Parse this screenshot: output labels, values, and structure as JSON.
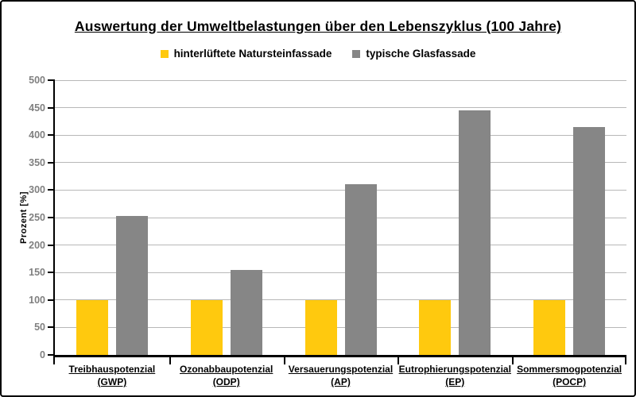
{
  "chart_data": {
    "type": "bar",
    "title": "Auswertung der Umweltbelastungen über den Lebenszyklus  (100 Jahre)",
    "ylabel": "Prozent [%]",
    "xlabel": "",
    "ylim": [
      0,
      500
    ],
    "ytick_step": 50,
    "grid": true,
    "legend_position": "top-center",
    "categories": [
      {
        "line1": "Treibhauspotenzial",
        "line2": "(GWP)"
      },
      {
        "line1": "Ozonabbaupotenzial",
        "line2": "(ODP)"
      },
      {
        "line1": "Versauerungspotenzial",
        "line2": "(AP)"
      },
      {
        "line1": "Eutrophierungspotenzial",
        "line2": "(EP)"
      },
      {
        "line1": "Sommersmogpotenzial",
        "line2": "(POCP)"
      }
    ],
    "series": [
      {
        "name": "hinterlüftete Natursteinfassade",
        "color": "#FFC90E",
        "values": [
          100,
          100,
          100,
          100,
          100
        ]
      },
      {
        "name": "typische Glasfassade",
        "color": "#868686",
        "values": [
          253,
          155,
          310,
          445,
          415
        ]
      }
    ],
    "colors": {
      "background": "#ffffff",
      "frame_border": "#000000",
      "axis": "#000000",
      "gridline": "#b8b8b8",
      "ytick_label": "#808080",
      "text": "#000000"
    }
  }
}
